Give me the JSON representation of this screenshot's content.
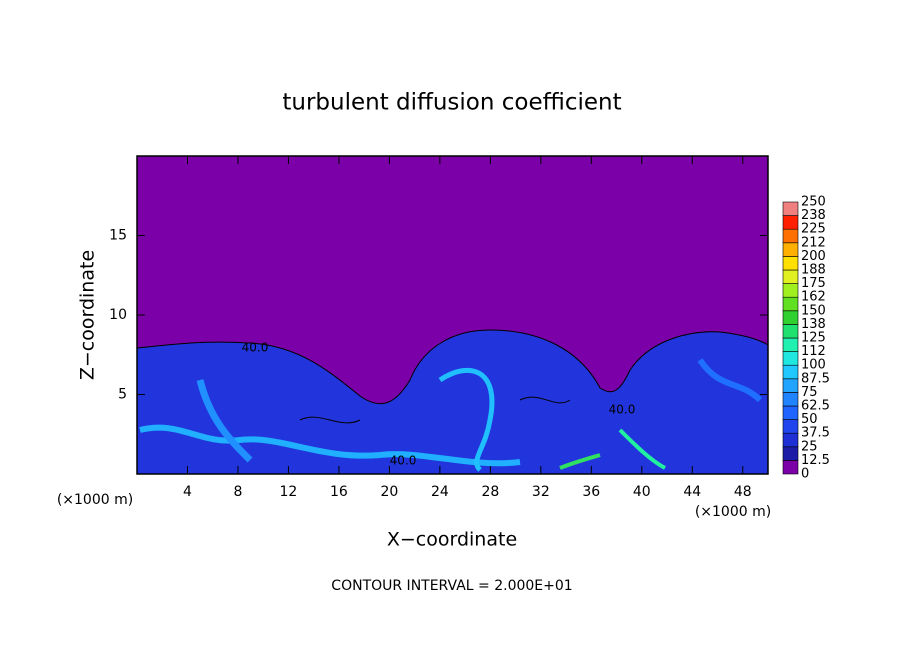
{
  "chart_data": {
    "type": "heatmap",
    "title": "turbulent diffusion coefficient",
    "x_label": "X−coordinate",
    "y_label": "Z−coordinate",
    "x_unit_left": "(×1000 m)",
    "x_unit_right": "(×1000 m)",
    "footer": "CONTOUR INTERVAL = 2.000E+01",
    "contour_labels": [
      "40.0",
      "40.0",
      "40.0"
    ],
    "xlim": [
      0,
      50
    ],
    "xticks": [
      4,
      8,
      12,
      16,
      20,
      24,
      28,
      32,
      36,
      40,
      44,
      48
    ],
    "ylim": [
      0,
      20
    ],
    "yticks": [
      5,
      10,
      15
    ],
    "colorbar": {
      "levels": [
        0,
        12.5,
        25,
        37.5,
        50,
        62.5,
        75,
        87.5,
        100,
        112,
        125,
        138,
        150,
        162,
        175,
        188,
        200,
        212,
        225,
        238,
        250
      ],
      "colors": [
        "#7b00a8",
        "#1c1ca6",
        "#1f2fd6",
        "#2045ee",
        "#2064ff",
        "#2084ff",
        "#20a4ff",
        "#20c8ff",
        "#20e8e0",
        "#20f0b0",
        "#20e070",
        "#30d030",
        "#60e020",
        "#a0f020",
        "#e0f020",
        "#ffe000",
        "#ffb000",
        "#ff7000",
        "#ff2000",
        "#f08080"
      ]
    }
  }
}
